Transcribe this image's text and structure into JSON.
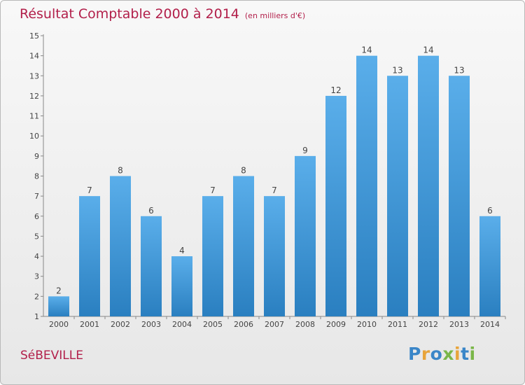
{
  "header": {
    "title": "Résultat Comptable 2000 à 2014",
    "unit": "(en milliers d'€)"
  },
  "commune": "SéBEVILLE",
  "brand": {
    "letters": [
      "P",
      "r",
      "o",
      "x",
      "i",
      "t",
      "i"
    ],
    "colors": [
      "#3a86c8",
      "#e8a43a",
      "#3a86c8",
      "#7ab648",
      "#e8a43a",
      "#3a86c8",
      "#7ab648"
    ]
  },
  "colors": {
    "bar_light": "#5aaeea",
    "bar_dark": "#2a7fc0",
    "title": "#b21f4a"
  },
  "chart_data": {
    "type": "bar",
    "title": "Résultat Comptable 2000 à 2014",
    "categories": [
      "2000",
      "2001",
      "2002",
      "2003",
      "2004",
      "2005",
      "2006",
      "2007",
      "2008",
      "2009",
      "2010",
      "2011",
      "2012",
      "2013",
      "2014"
    ],
    "values": [
      2,
      7,
      8,
      6,
      4,
      7,
      8,
      7,
      9,
      12,
      14,
      13,
      14,
      13,
      6
    ],
    "ylim": [
      1,
      15
    ],
    "yticks": [
      "1",
      "2",
      "3",
      "4",
      "5",
      "6",
      "7",
      "8",
      "9",
      "10",
      "11",
      "12",
      "13",
      "14",
      "15"
    ],
    "grid": false,
    "data_labels": true
  }
}
